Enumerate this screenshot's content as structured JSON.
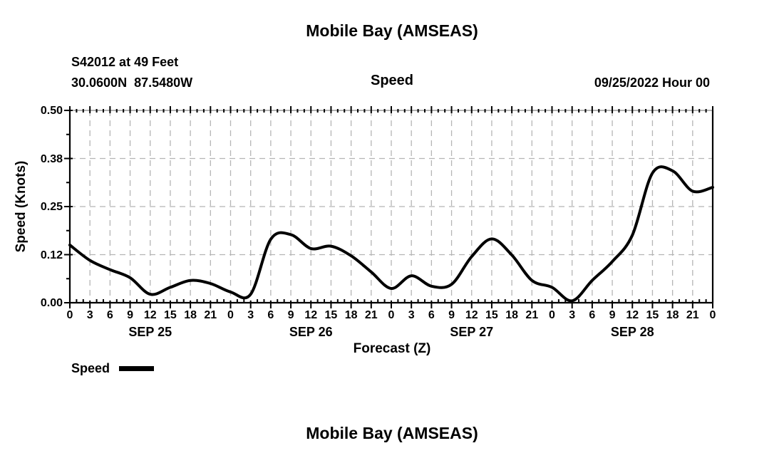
{
  "header": {
    "title": "Mobile Bay (AMSEAS)",
    "station_line1": "S42012 at 49 Feet",
    "station_line2": "30.0600N  87.5480W",
    "subtitle": "Speed",
    "datetime": "09/25/2022 Hour 00"
  },
  "legend": {
    "label": "Speed",
    "swatch_color": "#000000"
  },
  "footer": {
    "title": "Mobile Bay (AMSEAS)"
  },
  "chart_data": {
    "type": "line",
    "title": "Speed",
    "xlabel": "Forecast (Z)",
    "ylabel": "Speed (Knots)",
    "ylim": [
      0,
      0.5
    ],
    "ytick_values": [
      0,
      0.125,
      0.25,
      0.375,
      0.5
    ],
    "ytick_labels": [
      "0.00",
      "0.12",
      "0.25",
      "0.38",
      "0.50"
    ],
    "ytick_minor_values": [
      0.0625,
      0.1875,
      0.3125,
      0.4375
    ],
    "x_hours_span": 96,
    "xtick_interval_hours": 3,
    "xtick_minor_interval_hours": 1,
    "xtick_label_cycle": [
      "0",
      "3",
      "6",
      "9",
      "12",
      "15",
      "18",
      "21"
    ],
    "day_labels": [
      "SEP 25",
      "SEP 26",
      "SEP 27",
      "SEP 28"
    ],
    "grid": true,
    "grid_color": "#b5b5b5",
    "line_color": "#000000",
    "series": [
      {
        "name": "Speed",
        "x": [
          0,
          3,
          6,
          9,
          12,
          15,
          18,
          21,
          24,
          27,
          30,
          33,
          36,
          39,
          42,
          45,
          48,
          51,
          54,
          57,
          60,
          63,
          66,
          69,
          72,
          75,
          78,
          81,
          84,
          87,
          90,
          93,
          96
        ],
        "values": [
          0.15,
          0.11,
          0.086,
          0.065,
          0.022,
          0.04,
          0.058,
          0.05,
          0.028,
          0.022,
          0.165,
          0.177,
          0.141,
          0.147,
          0.122,
          0.08,
          0.037,
          0.07,
          0.043,
          0.048,
          0.12,
          0.166,
          0.124,
          0.058,
          0.04,
          0.005,
          0.058,
          0.107,
          0.176,
          0.337,
          0.343,
          0.29,
          0.3
        ]
      }
    ]
  }
}
